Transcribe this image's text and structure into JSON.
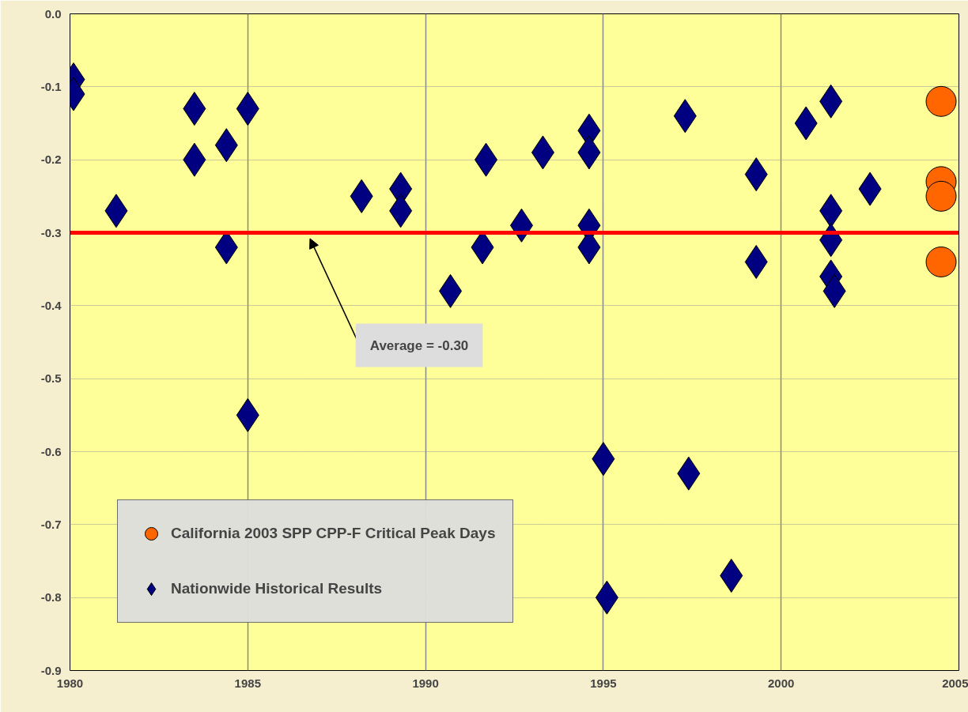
{
  "chart_data": {
    "type": "scatter",
    "xlim": [
      1980,
      2005
    ],
    "xticks": [
      1980,
      1985,
      1990,
      1995,
      2000,
      2005
    ],
    "ylim": [
      -0.9,
      0.0
    ],
    "yticks": [
      {
        "value": -0.9,
        "label": "-0.9"
      },
      {
        "value": -0.8,
        "label": "-0.8"
      },
      {
        "value": -0.7,
        "label": "-0.7"
      },
      {
        "value": -0.6,
        "label": "-0.6"
      },
      {
        "value": -0.5,
        "label": "-0.5"
      },
      {
        "value": -0.4,
        "label": "-0.4"
      },
      {
        "value": -0.3,
        "label": "-0.3"
      },
      {
        "value": -0.2,
        "label": "-0.2"
      },
      {
        "value": -0.1,
        "label": "-0.1"
      },
      {
        "value": 0.0,
        "label": "0.0"
      }
    ],
    "grid": true,
    "legend": "bottom left",
    "series": [
      {
        "name": "California 2003 SPP CPP-F Critical Peak Days",
        "color": "#ff6600",
        "marker": "circle",
        "x": [
          2004.5,
          2004.5,
          2004.5,
          2004.5
        ],
        "values": [
          -0.12,
          -0.23,
          -0.25,
          -0.34
        ]
      },
      {
        "name": "Nationwide Historical Results",
        "color": "#000080",
        "marker": "diamond",
        "x": [
          1980.1,
          1980.1,
          1981.3,
          1983.5,
          1983.5,
          1984.4,
          1984.4,
          1985.0,
          1985.0,
          1988.2,
          1989.3,
          1989.3,
          1990.7,
          1991.6,
          1991.7,
          1992.7,
          1993.3,
          1994.6,
          1994.6,
          1994.6,
          1994.6,
          1995.0,
          1995.1,
          1997.3,
          1997.4,
          1998.6,
          1999.3,
          1999.3,
          2000.7,
          2001.4,
          2001.4,
          2001.4,
          2001.4,
          2001.5,
          2002.5
        ],
        "values": [
          -0.09,
          -0.11,
          -0.27,
          -0.13,
          -0.2,
          -0.18,
          -0.32,
          -0.13,
          -0.55,
          -0.25,
          -0.24,
          -0.27,
          -0.38,
          -0.32,
          -0.2,
          -0.29,
          -0.19,
          -0.16,
          -0.19,
          -0.29,
          -0.32,
          -0.61,
          -0.8,
          -0.14,
          -0.63,
          -0.77,
          -0.22,
          -0.34,
          -0.15,
          -0.12,
          -0.27,
          -0.31,
          -0.36,
          -0.38,
          -0.24
        ]
      }
    ],
    "ref_lines": [
      {
        "axis": "y",
        "value": -0.3,
        "color": "#ff0000"
      }
    ],
    "annotations": [
      "Average = -0.30"
    ]
  }
}
